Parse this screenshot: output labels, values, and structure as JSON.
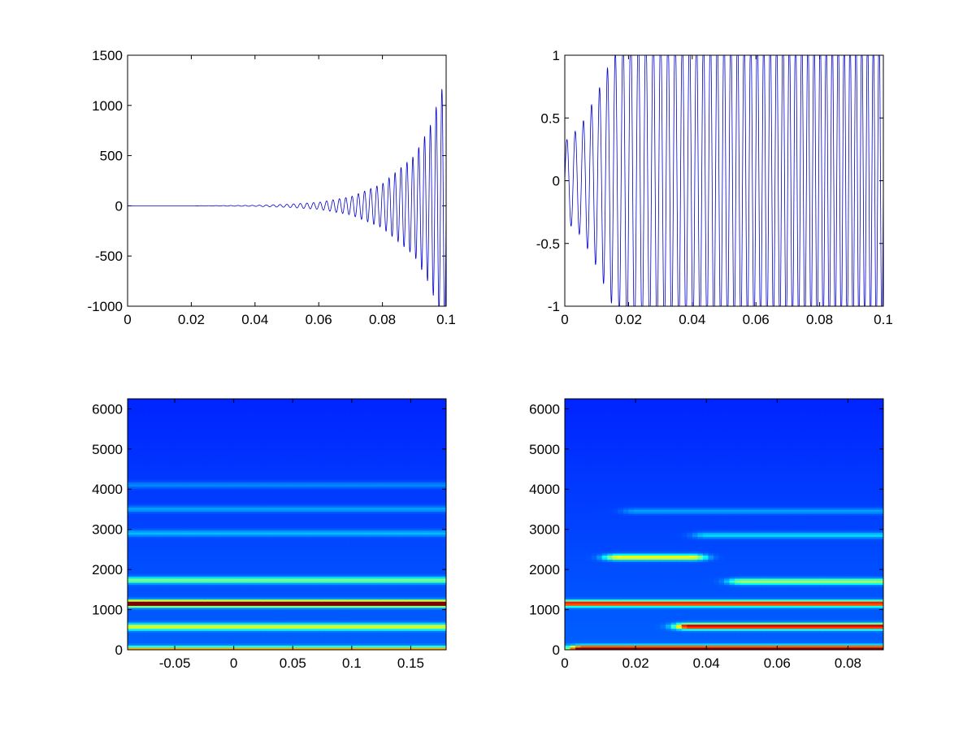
{
  "colors": {
    "line": "#0000cc",
    "axes": "#000000",
    "background": "#ffffff",
    "heatmap_colormap": "jet"
  },
  "chart_data": [
    {
      "type": "line",
      "title": "",
      "xlabel": "",
      "ylabel": "",
      "xlim": [
        0,
        0.1
      ],
      "ylim": [
        -1000,
        1500
      ],
      "x_ticks": [
        "0",
        "0.02",
        "0.04",
        "0.06",
        "0.08",
        "0.1"
      ],
      "y_ticks": [
        "-1000",
        "-500",
        "0",
        "500",
        "1000",
        "1500"
      ],
      "grid": false,
      "series": [
        {
          "description": "growing oscillation, amplitude envelope",
          "x": [
            0,
            0.02,
            0.04,
            0.05,
            0.06,
            0.07,
            0.08,
            0.09,
            0.095,
            0.1
          ],
          "envelope": [
            0,
            0,
            5,
            15,
            35,
            90,
            220,
            500,
            800,
            1300
          ]
        }
      ]
    },
    {
      "type": "line",
      "title": "",
      "xlabel": "",
      "ylabel": "",
      "xlim": [
        0,
        0.1
      ],
      "ylim": [
        -1,
        1
      ],
      "x_ticks": [
        "0",
        "0.02",
        "0.04",
        "0.06",
        "0.08",
        "0.1"
      ],
      "y_ticks": [
        "-1",
        "-0.5",
        "0",
        "0.5",
        "1"
      ],
      "grid": false,
      "series": [
        {
          "description": "clipped oscillation, amplitude envelope",
          "x": [
            0,
            0.005,
            0.01,
            0.015,
            0.02,
            0.03,
            0.04,
            0.1
          ],
          "envelope": [
            0.25,
            0.35,
            0.55,
            0.8,
            1,
            1,
            1,
            1
          ]
        }
      ]
    },
    {
      "type": "heatmap",
      "title": "",
      "xlabel": "",
      "ylabel": "",
      "xlim": [
        -0.09,
        0.18
      ],
      "ylim": [
        0,
        6250
      ],
      "x_ticks": [
        "-0.05",
        "0",
        "0.05",
        "0.1",
        "0.15"
      ],
      "y_ticks": [
        "0",
        "1000",
        "2000",
        "3000",
        "4000",
        "5000",
        "6000"
      ],
      "bands": [
        {
          "freq": 0,
          "intensity": 0.55
        },
        {
          "freq": 570,
          "intensity": 0.4
        },
        {
          "freq": 1150,
          "intensity": 0.95
        },
        {
          "freq": 1730,
          "intensity": 0.3
        },
        {
          "freq": 2900,
          "intensity": 0.12
        },
        {
          "freq": 3500,
          "intensity": 0.1
        },
        {
          "freq": 4100,
          "intensity": 0.08
        }
      ]
    },
    {
      "type": "heatmap",
      "title": "",
      "xlabel": "",
      "ylabel": "",
      "xlim": [
        0,
        0.09
      ],
      "ylim": [
        0,
        6250
      ],
      "x_ticks": [
        "0",
        "0.02",
        "0.04",
        "0.06",
        "0.08"
      ],
      "y_ticks": [
        "0",
        "1000",
        "2000",
        "3000",
        "4000",
        "5000",
        "6000"
      ],
      "blobs": [
        {
          "freq": 30,
          "x_start": 0.005,
          "x_end": 0.09,
          "intensity": 0.9
        },
        {
          "freq": 580,
          "x_start": 0.035,
          "x_end": 0.09,
          "intensity": 0.75
        },
        {
          "freq": 1150,
          "x_start": 0.0,
          "x_end": 0.09,
          "intensity": 0.7
        },
        {
          "freq": 1700,
          "x_start": 0.05,
          "x_end": 0.09,
          "intensity": 0.35
        },
        {
          "freq": 2300,
          "x_start": 0.015,
          "x_end": 0.036,
          "intensity": 0.45
        },
        {
          "freq": 2850,
          "x_start": 0.04,
          "x_end": 0.09,
          "intensity": 0.15
        },
        {
          "freq": 3450,
          "x_start": 0.02,
          "x_end": 0.09,
          "intensity": 0.1
        }
      ]
    }
  ]
}
